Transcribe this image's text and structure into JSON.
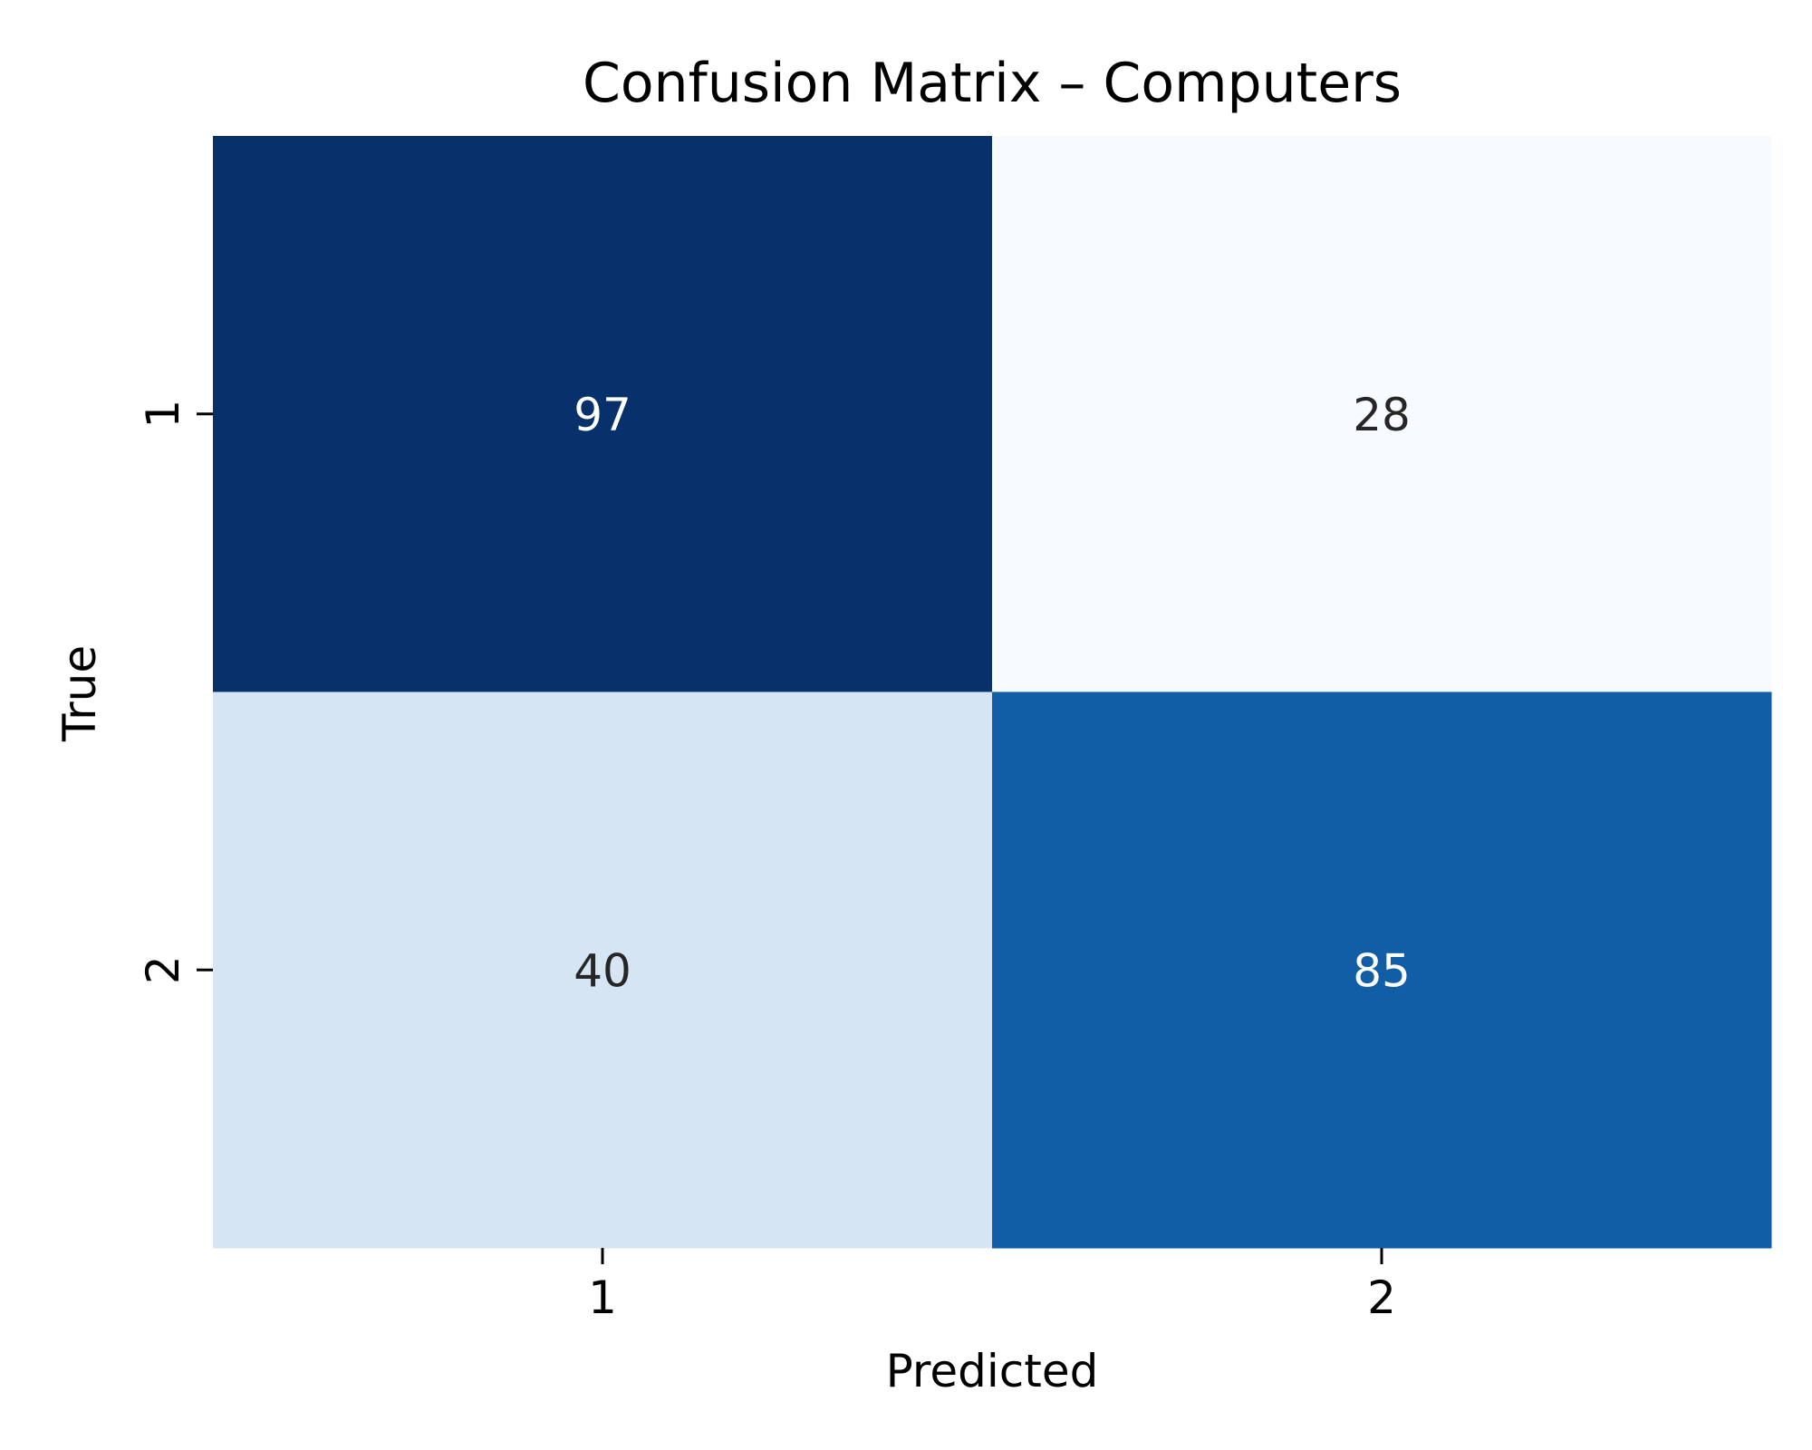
{
  "chart_data": {
    "type": "heatmap",
    "title": "Confusion Matrix – Computers",
    "xlabel": "Predicted",
    "ylabel": "True",
    "x_categories": [
      "1",
      "2"
    ],
    "y_categories": [
      "1",
      "2"
    ],
    "values": [
      [
        97,
        28
      ],
      [
        40,
        85
      ]
    ],
    "colormap": "Blues",
    "colorbar": false,
    "annotation_colors": {
      "dark_cell_text": "#ffffff",
      "light_cell_text": "#262626"
    }
  }
}
